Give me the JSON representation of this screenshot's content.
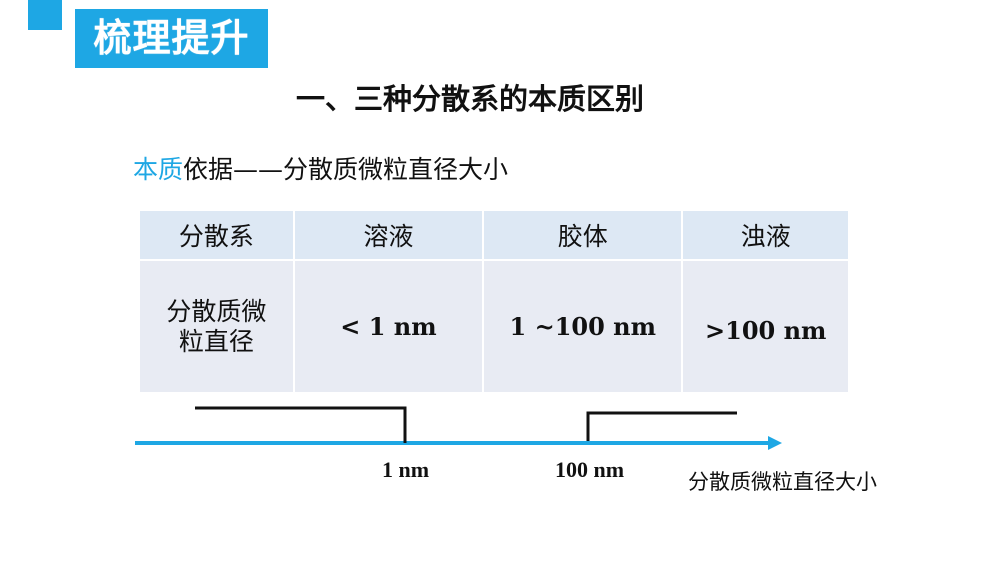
{
  "title_badge": "梳理提升",
  "heading": "一、三种分散系的本质区别",
  "subtitle": {
    "highlight": "本质",
    "rest": "依据——分散质微粒直径大小"
  },
  "table": {
    "headers": [
      "分散系",
      "溶液",
      "胶体",
      "浊液"
    ],
    "row": {
      "label": "分散质微粒直径",
      "values": [
        "< 1 nm",
        "1 ~100 nm",
        ">100 nm"
      ]
    }
  },
  "axis": {
    "ticks": [
      "1 nm",
      "100 nm"
    ],
    "label": "分散质微粒直径大小"
  },
  "colors": {
    "accent": "#1ea7e4",
    "header_row": "#dde8f4",
    "body_row": "#e8ebf3"
  }
}
